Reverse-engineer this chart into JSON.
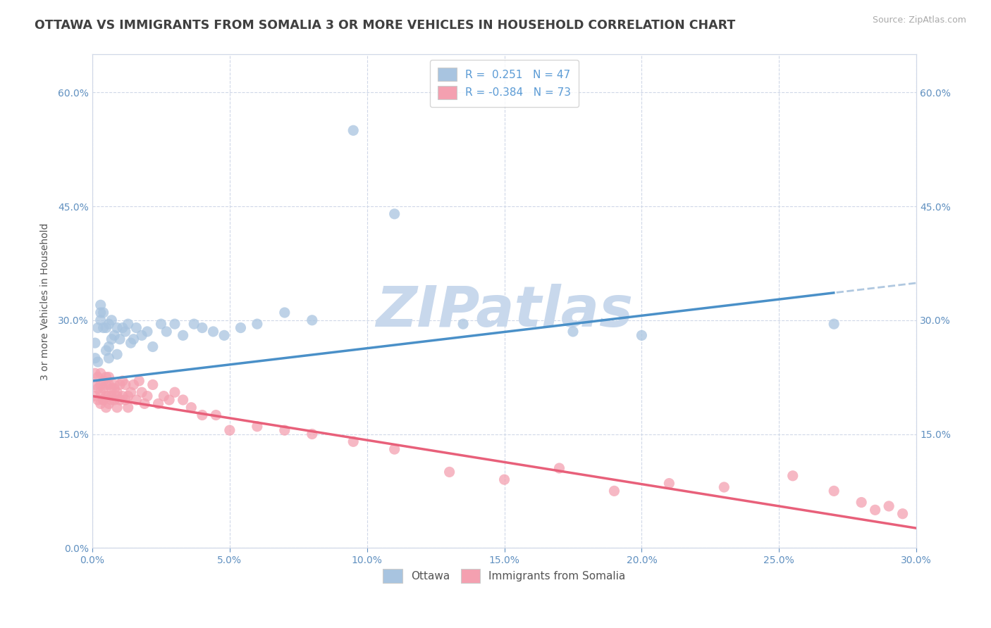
{
  "title": "OTTAWA VS IMMIGRANTS FROM SOMALIA 3 OR MORE VEHICLES IN HOUSEHOLD CORRELATION CHART",
  "source": "Source: ZipAtlas.com",
  "ylabel": "3 or more Vehicles in Household",
  "xlim": [
    0.0,
    0.3
  ],
  "ylim": [
    0.0,
    0.65
  ],
  "xticks": [
    0.0,
    0.05,
    0.1,
    0.15,
    0.2,
    0.25,
    0.3
  ],
  "xticklabels": [
    "0.0%",
    "5.0%",
    "10.0%",
    "15.0%",
    "20.0%",
    "25.0%",
    "30.0%"
  ],
  "yticks": [
    0.0,
    0.15,
    0.3,
    0.45,
    0.6
  ],
  "yticklabels": [
    "0.0%",
    "15.0%",
    "30.0%",
    "45.0%",
    "60.0%"
  ],
  "right_yticks": [
    0.15,
    0.3,
    0.45,
    0.6
  ],
  "right_yticklabels": [
    "15.0%",
    "30.0%",
    "45.0%",
    "60.0%"
  ],
  "ottawa_R": 0.251,
  "ottawa_N": 47,
  "somalia_R": -0.384,
  "somalia_N": 73,
  "ottawa_color": "#a8c4e0",
  "somalia_color": "#f4a0b0",
  "ottawa_line_color": "#4a90c8",
  "somalia_line_color": "#e8607a",
  "ottawa_dash_color": "#b0c8e0",
  "background_color": "#ffffff",
  "grid_color": "#d0d8e8",
  "title_color": "#404040",
  "axis_color": "#6090c0",
  "legend_R_color": "#5b9bd5",
  "watermark_color": "#c8d8ec",
  "ottawa_line_intercept": 0.22,
  "ottawa_line_slope": 0.43,
  "somalia_line_intercept": 0.2,
  "somalia_line_slope": -0.58,
  "ottawa_x": [
    0.001,
    0.001,
    0.002,
    0.002,
    0.003,
    0.003,
    0.003,
    0.004,
    0.004,
    0.005,
    0.005,
    0.006,
    0.006,
    0.006,
    0.007,
    0.007,
    0.008,
    0.009,
    0.009,
    0.01,
    0.011,
    0.012,
    0.013,
    0.014,
    0.015,
    0.016,
    0.018,
    0.02,
    0.022,
    0.025,
    0.027,
    0.03,
    0.033,
    0.037,
    0.04,
    0.044,
    0.048,
    0.054,
    0.06,
    0.07,
    0.08,
    0.095,
    0.11,
    0.135,
    0.175,
    0.2,
    0.27
  ],
  "ottawa_y": [
    0.25,
    0.27,
    0.245,
    0.29,
    0.3,
    0.31,
    0.32,
    0.29,
    0.31,
    0.26,
    0.29,
    0.25,
    0.265,
    0.295,
    0.275,
    0.3,
    0.28,
    0.255,
    0.29,
    0.275,
    0.29,
    0.285,
    0.295,
    0.27,
    0.275,
    0.29,
    0.28,
    0.285,
    0.265,
    0.295,
    0.285,
    0.295,
    0.28,
    0.295,
    0.29,
    0.285,
    0.28,
    0.29,
    0.295,
    0.31,
    0.3,
    0.55,
    0.44,
    0.295,
    0.285,
    0.28,
    0.295
  ],
  "somalia_x": [
    0.001,
    0.001,
    0.001,
    0.002,
    0.002,
    0.002,
    0.003,
    0.003,
    0.003,
    0.003,
    0.004,
    0.004,
    0.004,
    0.004,
    0.005,
    0.005,
    0.005,
    0.005,
    0.006,
    0.006,
    0.006,
    0.006,
    0.007,
    0.007,
    0.007,
    0.008,
    0.008,
    0.008,
    0.009,
    0.009,
    0.009,
    0.01,
    0.01,
    0.011,
    0.011,
    0.012,
    0.012,
    0.013,
    0.013,
    0.014,
    0.015,
    0.016,
    0.017,
    0.018,
    0.019,
    0.02,
    0.022,
    0.024,
    0.026,
    0.028,
    0.03,
    0.033,
    0.036,
    0.04,
    0.045,
    0.05,
    0.06,
    0.07,
    0.08,
    0.095,
    0.11,
    0.13,
    0.15,
    0.17,
    0.19,
    0.21,
    0.23,
    0.255,
    0.27,
    0.28,
    0.285,
    0.29,
    0.295
  ],
  "somalia_y": [
    0.2,
    0.215,
    0.23,
    0.195,
    0.21,
    0.225,
    0.19,
    0.205,
    0.215,
    0.23,
    0.195,
    0.21,
    0.22,
    0.195,
    0.215,
    0.2,
    0.185,
    0.225,
    0.19,
    0.215,
    0.2,
    0.225,
    0.195,
    0.21,
    0.2,
    0.215,
    0.195,
    0.21,
    0.2,
    0.185,
    0.205,
    0.195,
    0.215,
    0.2,
    0.22,
    0.195,
    0.215,
    0.2,
    0.185,
    0.205,
    0.215,
    0.195,
    0.22,
    0.205,
    0.19,
    0.2,
    0.215,
    0.19,
    0.2,
    0.195,
    0.205,
    0.195,
    0.185,
    0.175,
    0.175,
    0.155,
    0.16,
    0.155,
    0.15,
    0.14,
    0.13,
    0.1,
    0.09,
    0.105,
    0.075,
    0.085,
    0.08,
    0.095,
    0.075,
    0.06,
    0.05,
    0.055,
    0.045
  ]
}
